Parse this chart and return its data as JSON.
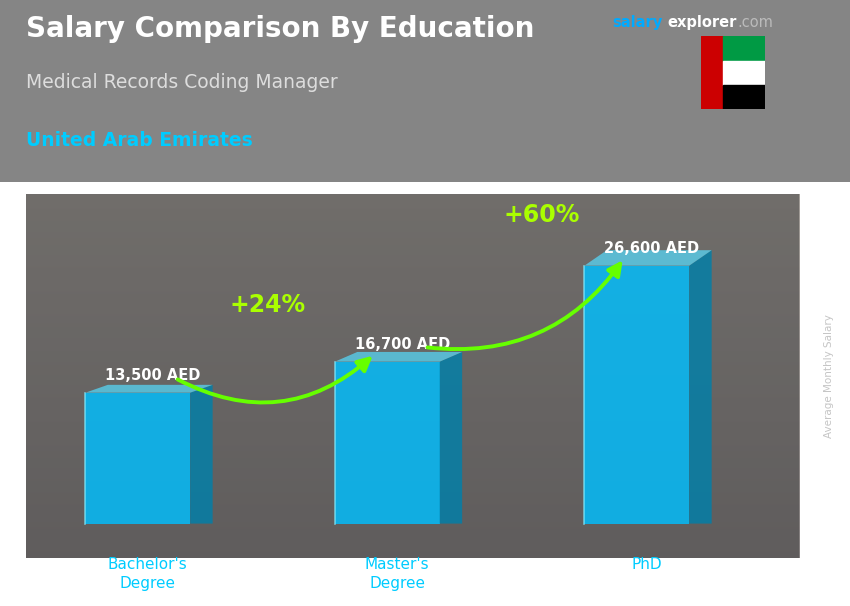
{
  "title": "Salary Comparison By Education",
  "subtitle_job": "Medical Records Coding Manager",
  "subtitle_country": "United Arab Emirates",
  "ylabel": "Average Monthly Salary",
  "categories": [
    "Bachelor's\nDegree",
    "Master's\nDegree",
    "PhD"
  ],
  "values": [
    13500,
    16700,
    26600
  ],
  "value_labels": [
    "13,500 AED",
    "16,700 AED",
    "26,600 AED"
  ],
  "pct_labels": [
    "+24%",
    "+60%"
  ],
  "bar_color_face": "#00BFFF",
  "bar_color_side": "#0080AA",
  "bar_color_top": "#55DDFF",
  "bar_alpha": 0.82,
  "bg_color": "#6a6a6a",
  "overlay_color": "#444444",
  "title_color": "#FFFFFF",
  "subtitle_job_color": "#DDDDDD",
  "subtitle_country_color": "#00CCFF",
  "value_label_color": "#FFFFFF",
  "pct_color": "#AAFF00",
  "tick_label_color": "#00CCFF",
  "arrow_color": "#66FF00",
  "brand_salary_color": "#00AAFF",
  "brand_explorer_color": "#FFFFFF",
  "brand_com_color": "#BBBBBB",
  "figsize": [
    8.5,
    6.06
  ],
  "dpi": 100,
  "bar_positions": [
    0.45,
    1.45,
    2.45
  ],
  "bar_width": 0.42,
  "xlim": [
    0,
    3.1
  ],
  "ylim": [
    -3500,
    34000
  ]
}
